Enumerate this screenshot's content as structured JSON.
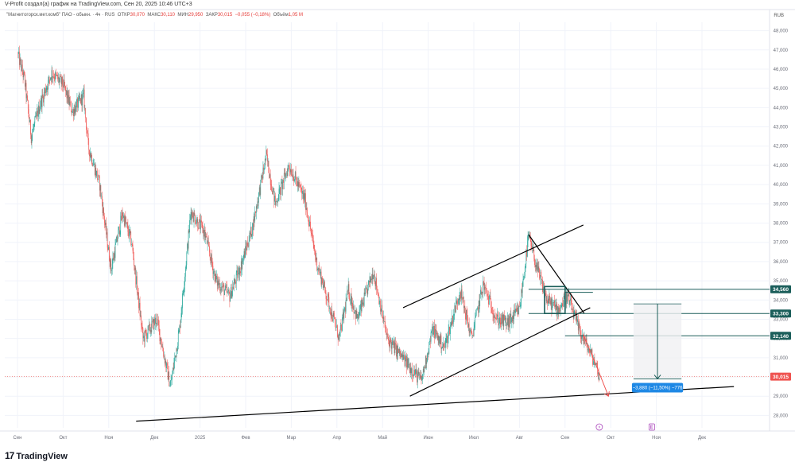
{
  "header": {
    "credit": "V-Profit создал(а) график на TradingView.com, Сен 20, 2025 10:46 UTC+3",
    "instrument": "\"Магнитогорск.мет.комб\" ПАО - обыкн. · 4ч · RUS",
    "open_label": "ОТКР",
    "open_value": "30,070",
    "high_label": "МАКС",
    "high_value": "30,110",
    "low_label": "МИН",
    "low_value": "29,950",
    "close_label": "ЗАКР",
    "close_value": "30,015",
    "change": "−0,055 (−0,18%)",
    "volume_label": "Объём",
    "volume_value": "1,05 M",
    "currency": "RUB"
  },
  "brand": {
    "logo": "17",
    "name": "TradingView"
  },
  "colors": {
    "up": "#26a69a",
    "down": "#ef5350",
    "grid": "#f0f3fa",
    "trend_line": "#000000",
    "level_line": "#1b5e5a",
    "projection": "#1e88e5"
  },
  "markers": [
    "lightning-icon",
    "earnings-e-icon"
  ],
  "chart_data": {
    "type": "candlestick",
    "symbol": "\"Магнитогорск.мет.комб\" ПАО - обыкн.",
    "timeframe": "4ч",
    "x_ticks": [
      "Сен",
      "Окт",
      "Ноя",
      "Дек",
      "2025",
      "Фев",
      "Мар",
      "Апр",
      "Май",
      "Июн",
      "Июл",
      "Авг",
      "Сен",
      "Окт",
      "Ноя",
      "Дек"
    ],
    "y_ticks": [
      48000,
      47000,
      46000,
      45000,
      44000,
      43000,
      42000,
      41000,
      40000,
      39000,
      38000,
      37000,
      36000,
      35000,
      34000,
      33000,
      32000,
      31000,
      30000,
      29000,
      28000
    ],
    "ylim": [
      27300,
      48600
    ],
    "grid": true,
    "price_series": [
      {
        "m": 0.0,
        "p": 46.8
      },
      {
        "m": 0.15,
        "p": 45.5
      },
      {
        "m": 0.3,
        "p": 42.5
      },
      {
        "m": 0.5,
        "p": 44.2
      },
      {
        "m": 0.75,
        "p": 45.8
      },
      {
        "m": 1.0,
        "p": 45.2
      },
      {
        "m": 1.2,
        "p": 43.8
      },
      {
        "m": 1.45,
        "p": 44.6
      },
      {
        "m": 1.55,
        "p": 42.0
      },
      {
        "m": 1.8,
        "p": 40.0
      },
      {
        "m": 2.05,
        "p": 35.6
      },
      {
        "m": 2.3,
        "p": 38.5
      },
      {
        "m": 2.5,
        "p": 37.0
      },
      {
        "m": 2.75,
        "p": 32.0
      },
      {
        "m": 3.05,
        "p": 33.0
      },
      {
        "m": 3.35,
        "p": 29.5
      },
      {
        "m": 3.55,
        "p": 32.5
      },
      {
        "m": 3.8,
        "p": 38.6
      },
      {
        "m": 4.1,
        "p": 37.5
      },
      {
        "m": 4.35,
        "p": 35.0
      },
      {
        "m": 4.65,
        "p": 34.2
      },
      {
        "m": 4.9,
        "p": 35.8
      },
      {
        "m": 5.15,
        "p": 37.8
      },
      {
        "m": 5.45,
        "p": 41.5
      },
      {
        "m": 5.65,
        "p": 39.0
      },
      {
        "m": 5.95,
        "p": 41.0
      },
      {
        "m": 6.3,
        "p": 39.2
      },
      {
        "m": 6.55,
        "p": 36.0
      },
      {
        "m": 6.8,
        "p": 34.0
      },
      {
        "m": 7.05,
        "p": 32.0
      },
      {
        "m": 7.25,
        "p": 34.5
      },
      {
        "m": 7.45,
        "p": 33.0
      },
      {
        "m": 7.8,
        "p": 35.5
      },
      {
        "m": 8.1,
        "p": 32.0
      },
      {
        "m": 8.5,
        "p": 30.8
      },
      {
        "m": 8.85,
        "p": 29.8
      },
      {
        "m": 9.1,
        "p": 32.5
      },
      {
        "m": 9.35,
        "p": 31.5
      },
      {
        "m": 9.7,
        "p": 34.5
      },
      {
        "m": 9.95,
        "p": 32.0
      },
      {
        "m": 10.2,
        "p": 34.8
      },
      {
        "m": 10.5,
        "p": 33.0
      },
      {
        "m": 10.75,
        "p": 32.8
      },
      {
        "m": 11.0,
        "p": 33.5
      },
      {
        "m": 11.2,
        "p": 37.3
      },
      {
        "m": 11.4,
        "p": 35.5
      },
      {
        "m": 11.6,
        "p": 34.0
      },
      {
        "m": 11.85,
        "p": 33.5
      },
      {
        "m": 12.05,
        "p": 34.2
      },
      {
        "m": 12.3,
        "p": 32.5
      },
      {
        "m": 12.5,
        "p": 31.5
      },
      {
        "m": 12.7,
        "p": 30.5
      },
      {
        "m": 12.75,
        "p": 30.0
      }
    ],
    "drawings": {
      "support_line": [
        {
          "m": 2.6,
          "p": 27.7
        },
        {
          "m": 15.7,
          "p": 29.5
        }
      ],
      "channel_upper": [
        {
          "m": 8.45,
          "p": 33.6
        },
        {
          "m": 12.4,
          "p": 37.9
        }
      ],
      "channel_lower": [
        {
          "m": 8.6,
          "p": 29.0
        },
        {
          "m": 12.55,
          "p": 33.6
        }
      ],
      "fall_line": [
        {
          "m": 11.2,
          "p": 37.4
        },
        {
          "m": 12.42,
          "p": 33.3
        }
      ],
      "box": {
        "m0": 11.55,
        "m1": 12.0,
        "p0": 33.3,
        "p1": 34.7
      },
      "forecast_arrow": [
        {
          "m": 12.4,
          "p": 32.2
        },
        {
          "m": 12.7,
          "p": 30.5
        },
        {
          "m": 12.95,
          "p": 29.0
        }
      ],
      "measure": {
        "m0": 13.5,
        "m1": 14.55,
        "p_top": 33.8,
        "p_bottom": 29.9
      }
    },
    "price_levels": [
      {
        "label": "34,560",
        "value": 34560,
        "style": "level"
      },
      {
        "label": "33,300",
        "value": 33300,
        "style": "level"
      },
      {
        "label": "32,140",
        "value": 32140,
        "style": "level"
      },
      {
        "label": "30,015",
        "value": 30015,
        "style": "last"
      }
    ],
    "annotations": [
      {
        "text": "−3,880 (−11,50%) −776",
        "value": -3880,
        "percent": -11.5,
        "bars": -776
      }
    ]
  }
}
